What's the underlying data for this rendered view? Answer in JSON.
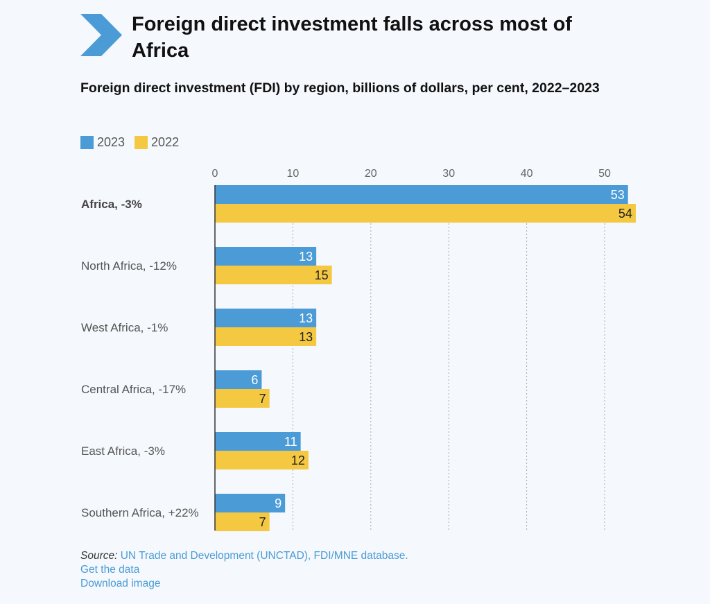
{
  "title": "Foreign direct investment falls across most of Africa",
  "chart_data": {
    "type": "bar",
    "orientation": "horizontal",
    "title": "Foreign direct investment (FDI) by region, billions of dollars, per cent, 2022–2023",
    "categories": [
      "Africa, -3%",
      "North Africa, -12%",
      "West Africa, -1%",
      "Central Africa, -17%",
      "East Africa, -3%",
      "Southern Africa, +22%"
    ],
    "series": [
      {
        "name": "2023",
        "color": "#4a9bd6",
        "values": [
          53,
          13,
          13,
          6,
          11,
          9
        ]
      },
      {
        "name": "2022",
        "color": "#f5c842",
        "values": [
          54,
          15,
          13,
          7,
          12,
          7
        ]
      }
    ],
    "xlim": [
      0,
      54
    ],
    "xticks": [
      "0",
      "10",
      "20",
      "30",
      "40",
      "50"
    ],
    "grid": true,
    "legend": "top-left",
    "bold_category": "Africa, -3%"
  },
  "footer": {
    "source_label": "Source:",
    "source_text": "UN Trade and Development (UNCTAD), FDI/MNE database.",
    "get_data": "Get the data",
    "download": "Download image"
  },
  "colors": {
    "accent": "#4a9bd6",
    "yellow": "#f5c842"
  },
  "icons": {
    "logo": "chevron-right-icon"
  }
}
